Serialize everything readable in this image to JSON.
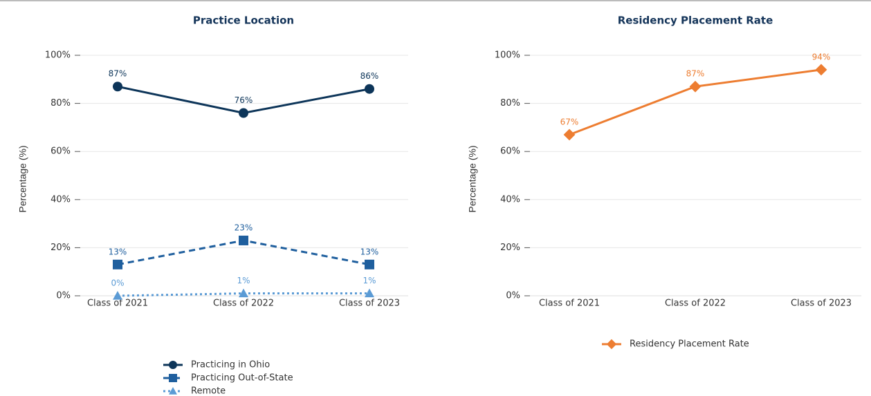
{
  "chart_data": [
    {
      "type": "line",
      "title": "Practice Location",
      "ylabel": "Percentage (%)",
      "categories": [
        "Class of 2021",
        "Class of 2022",
        "Class of 2023"
      ],
      "ylim": [
        0,
        100
      ],
      "yticks": [
        {
          "value": 0,
          "label": "0%"
        },
        {
          "value": 20,
          "label": "20%"
        },
        {
          "value": 40,
          "label": "40%"
        },
        {
          "value": 60,
          "label": "60%"
        },
        {
          "value": 80,
          "label": "80%"
        },
        {
          "value": 100,
          "label": "100%"
        }
      ],
      "grid": true,
      "legend": "bottom",
      "series": [
        {
          "name": "Practicing in Ohio",
          "color": "#0d3559",
          "marker": "circle",
          "line_style": "solid",
          "values": [
            87,
            76,
            86
          ],
          "value_labels": [
            "87%",
            "76%",
            "86%"
          ]
        },
        {
          "name": "Practicing Out-of-State",
          "color": "#1f5f9e",
          "marker": "square",
          "line_style": "dashed",
          "values": [
            13,
            23,
            13
          ],
          "value_labels": [
            "13%",
            "23%",
            "13%"
          ]
        },
        {
          "name": "Remote",
          "color": "#5b9bd5",
          "marker": "triangle",
          "line_style": "dotted",
          "values": [
            0,
            1,
            1
          ],
          "value_labels": [
            "0%",
            "1%",
            "1%"
          ]
        }
      ]
    },
    {
      "type": "line",
      "title": "Residency Placement Rate",
      "ylabel": "Percentage (%)",
      "categories": [
        "Class of 2021",
        "Class of 2022",
        "Class of 2023"
      ],
      "ylim": [
        0,
        100
      ],
      "yticks": [
        {
          "value": 0,
          "label": "0%"
        },
        {
          "value": 20,
          "label": "20%"
        },
        {
          "value": 40,
          "label": "40%"
        },
        {
          "value": 60,
          "label": "60%"
        },
        {
          "value": 80,
          "label": "80%"
        },
        {
          "value": 100,
          "label": "100%"
        }
      ],
      "grid": true,
      "legend": "bottom",
      "series": [
        {
          "name": "Residency Placement Rate",
          "color": "#ed7d31",
          "marker": "diamond",
          "line_style": "solid",
          "values": [
            67,
            87,
            94
          ],
          "value_labels": [
            "67%",
            "87%",
            "94%"
          ]
        }
      ]
    }
  ]
}
